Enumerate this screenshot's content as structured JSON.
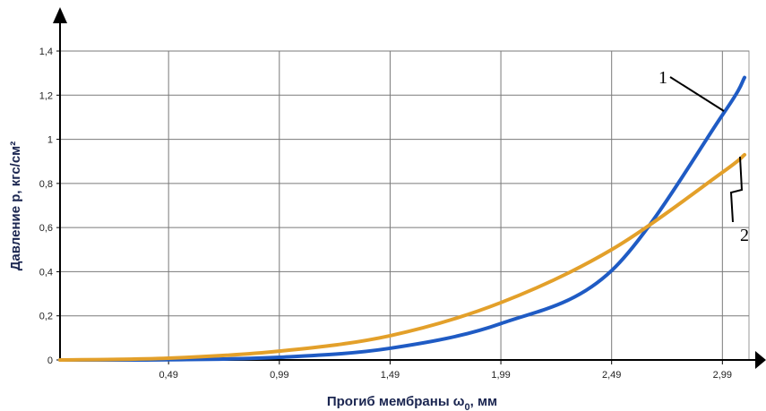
{
  "chart_data": {
    "type": "line",
    "title": "",
    "xlabel": "Прогиб мембраны ω",
    "xlabel_subscript": "0",
    "xlabel_unit": ", мм",
    "ylabel": "Давление p, кгс/см²",
    "xlim": [
      0,
      3.11
    ],
    "ylim": [
      0,
      1.4
    ],
    "x_ticks": [
      0.49,
      0.99,
      1.49,
      1.99,
      2.49,
      2.99
    ],
    "x_tick_labels": [
      "0,49",
      "0,99",
      "1,49",
      "1,99",
      "2,49",
      "2,99"
    ],
    "y_ticks": [
      0,
      0.2,
      0.4,
      0.6,
      0.8,
      1,
      1.2,
      1.4
    ],
    "y_tick_labels": [
      "0",
      "0,2",
      "0,4",
      "0,6",
      "0,8",
      "1",
      "1,2",
      "1,4"
    ],
    "grid": true,
    "series": [
      {
        "name": "1",
        "color": "#1f5bc4",
        "x": [
          0,
          0.49,
          0.99,
          1.49,
          1.99,
          2.49,
          2.99,
          3.09
        ],
        "y": [
          0,
          0.001,
          0.012,
          0.053,
          0.165,
          0.405,
          1.11,
          1.28
        ]
      },
      {
        "name": "2",
        "color": "#e3a02a",
        "x": [
          0,
          0.49,
          0.99,
          1.49,
          1.99,
          2.49,
          2.99,
          3.09
        ],
        "y": [
          0,
          0.008,
          0.04,
          0.11,
          0.26,
          0.5,
          0.85,
          0.93
        ]
      }
    ]
  }
}
